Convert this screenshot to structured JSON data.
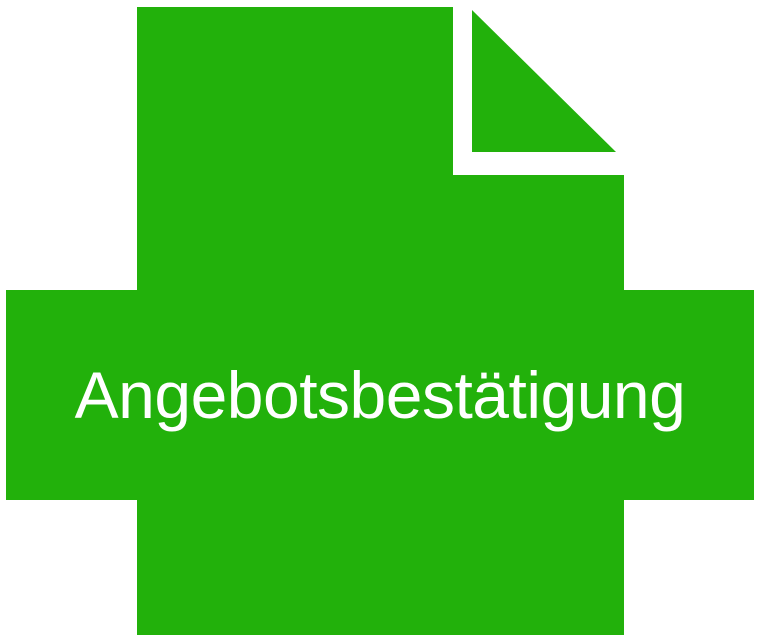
{
  "icon": {
    "name": "document-icon",
    "color": "#22B10B",
    "label": "Angebotsbestätigung"
  }
}
